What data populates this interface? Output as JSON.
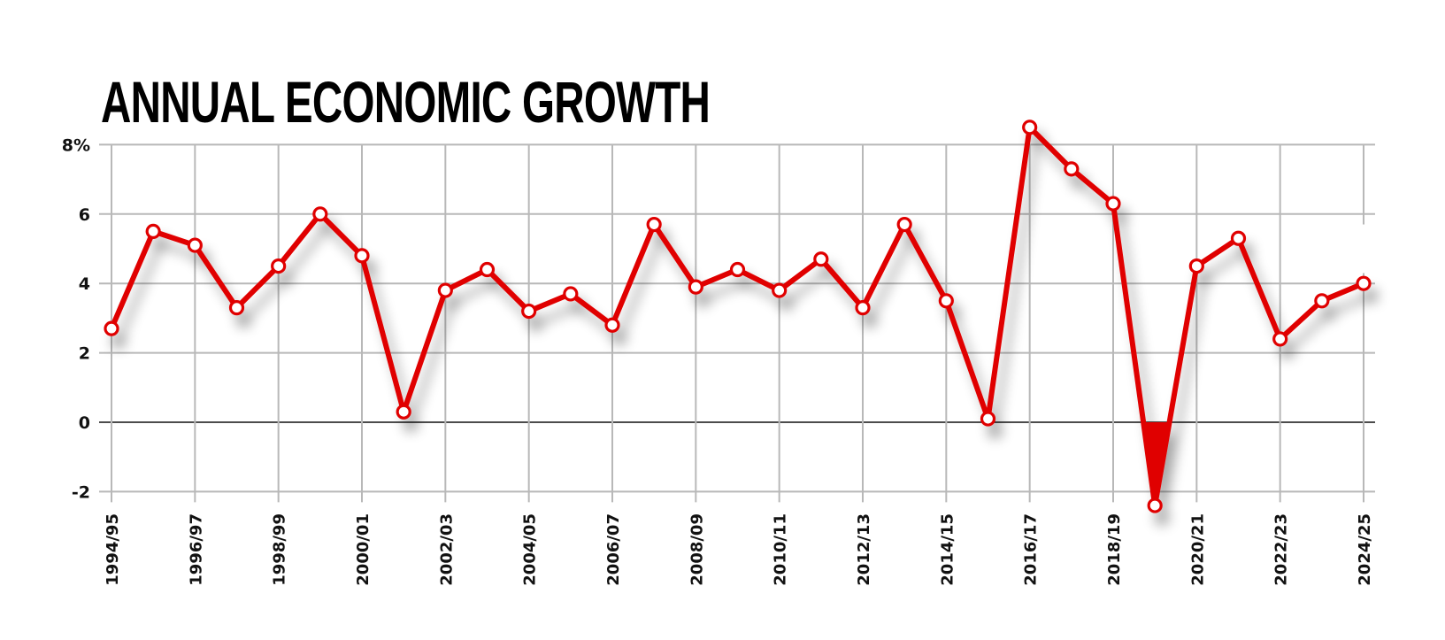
{
  "header": {
    "title": "ANNUAL ECONOMIC GROWTH"
  },
  "colors": {
    "line": "#e00000",
    "grid": "#b8b8b8",
    "zero_axis": "#111111",
    "marker_fill": "#ffffff",
    "text": "#111111",
    "background": "#ffffff"
  },
  "chart_data": {
    "type": "line",
    "title": "ANNUAL ECONOMIC GROWTH",
    "xlabel": "",
    "ylabel": "",
    "unit": "%",
    "ylim": [
      -2,
      8
    ],
    "yticks": [
      -2,
      0,
      2,
      4,
      6,
      8
    ],
    "ytick_labels": [
      "-2",
      "0",
      "2",
      "4",
      "6",
      "8%"
    ],
    "grid": true,
    "legend": null,
    "x_tick_labels": [
      "1994/95",
      "1996/97",
      "1998/99",
      "2000/01",
      "2002/03",
      "2004/05",
      "2006/07",
      "2008/09",
      "2010/11",
      "2012/13",
      "2014/15",
      "2016/17",
      "2018/19",
      "2020/21",
      "2022/23",
      "2024/25"
    ],
    "categories": [
      "1994/95",
      "1995/96",
      "1996/97",
      "1997/98",
      "1998/99",
      "1999/00",
      "2000/01",
      "2001/02",
      "2002/03",
      "2003/04",
      "2004/05",
      "2005/06",
      "2006/07",
      "2007/08",
      "2008/09",
      "2009/10",
      "2010/11",
      "2011/12",
      "2012/13",
      "2013/14",
      "2014/15",
      "2015/16",
      "2016/17",
      "2017/18",
      "2018/19",
      "2019/20",
      "2020/21",
      "2021/22",
      "2022/23",
      "2023/24",
      "2024/25"
    ],
    "series": [
      {
        "name": "Annual economic growth",
        "values": [
          2.7,
          5.5,
          5.1,
          3.3,
          4.5,
          6.0,
          4.8,
          0.3,
          3.8,
          4.4,
          3.2,
          3.7,
          2.8,
          5.7,
          3.9,
          4.4,
          3.8,
          4.7,
          3.3,
          5.7,
          3.5,
          0.1,
          8.5,
          7.3,
          6.3,
          -2.4,
          4.5,
          5.3,
          2.4,
          3.5,
          4.0
        ]
      }
    ],
    "annotations": [
      "Area below zero filled red for 2019/20"
    ]
  }
}
